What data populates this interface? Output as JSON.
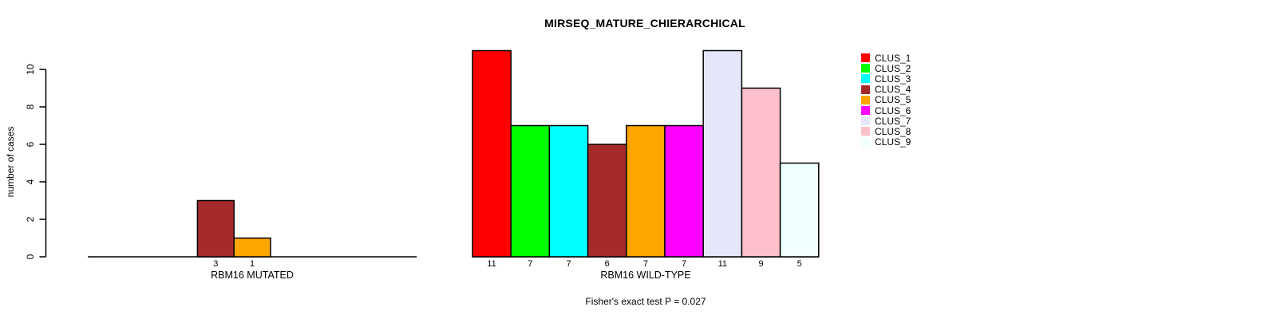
{
  "chart_data": {
    "type": "bar",
    "title": "MIRSEQ_MATURE_CHIERARCHICAL",
    "ylabel": "number of cases",
    "xlabel": "",
    "ylim": [
      0,
      10
    ],
    "yticks": [
      0,
      2,
      4,
      6,
      8,
      10
    ],
    "grid": false,
    "legend_position": "right",
    "categories": [
      "CLUS_1",
      "CLUS_2",
      "CLUS_3",
      "CLUS_4",
      "CLUS_5",
      "CLUS_6",
      "CLUS_7",
      "CLUS_8",
      "CLUS_9"
    ],
    "colors": [
      "#FF0000",
      "#00FF00",
      "#00FFFF",
      "#A52A2A",
      "#FFA500",
      "#FF00FF",
      "#E6E6FA",
      "#FFC0CB",
      "#F0FFFF"
    ],
    "bar_border_color": "#000000",
    "series": [
      {
        "name": "RBM16 MUTATED",
        "values": [
          0,
          0,
          0,
          3,
          1,
          0,
          0,
          0,
          0
        ]
      },
      {
        "name": "RBM16 WILD-TYPE",
        "values": [
          11,
          7,
          7,
          6,
          7,
          7,
          11,
          9,
          5
        ]
      }
    ],
    "value_labels": "shown under each nonzero bar",
    "annotation": "Fisher's exact test P = 0.027"
  }
}
